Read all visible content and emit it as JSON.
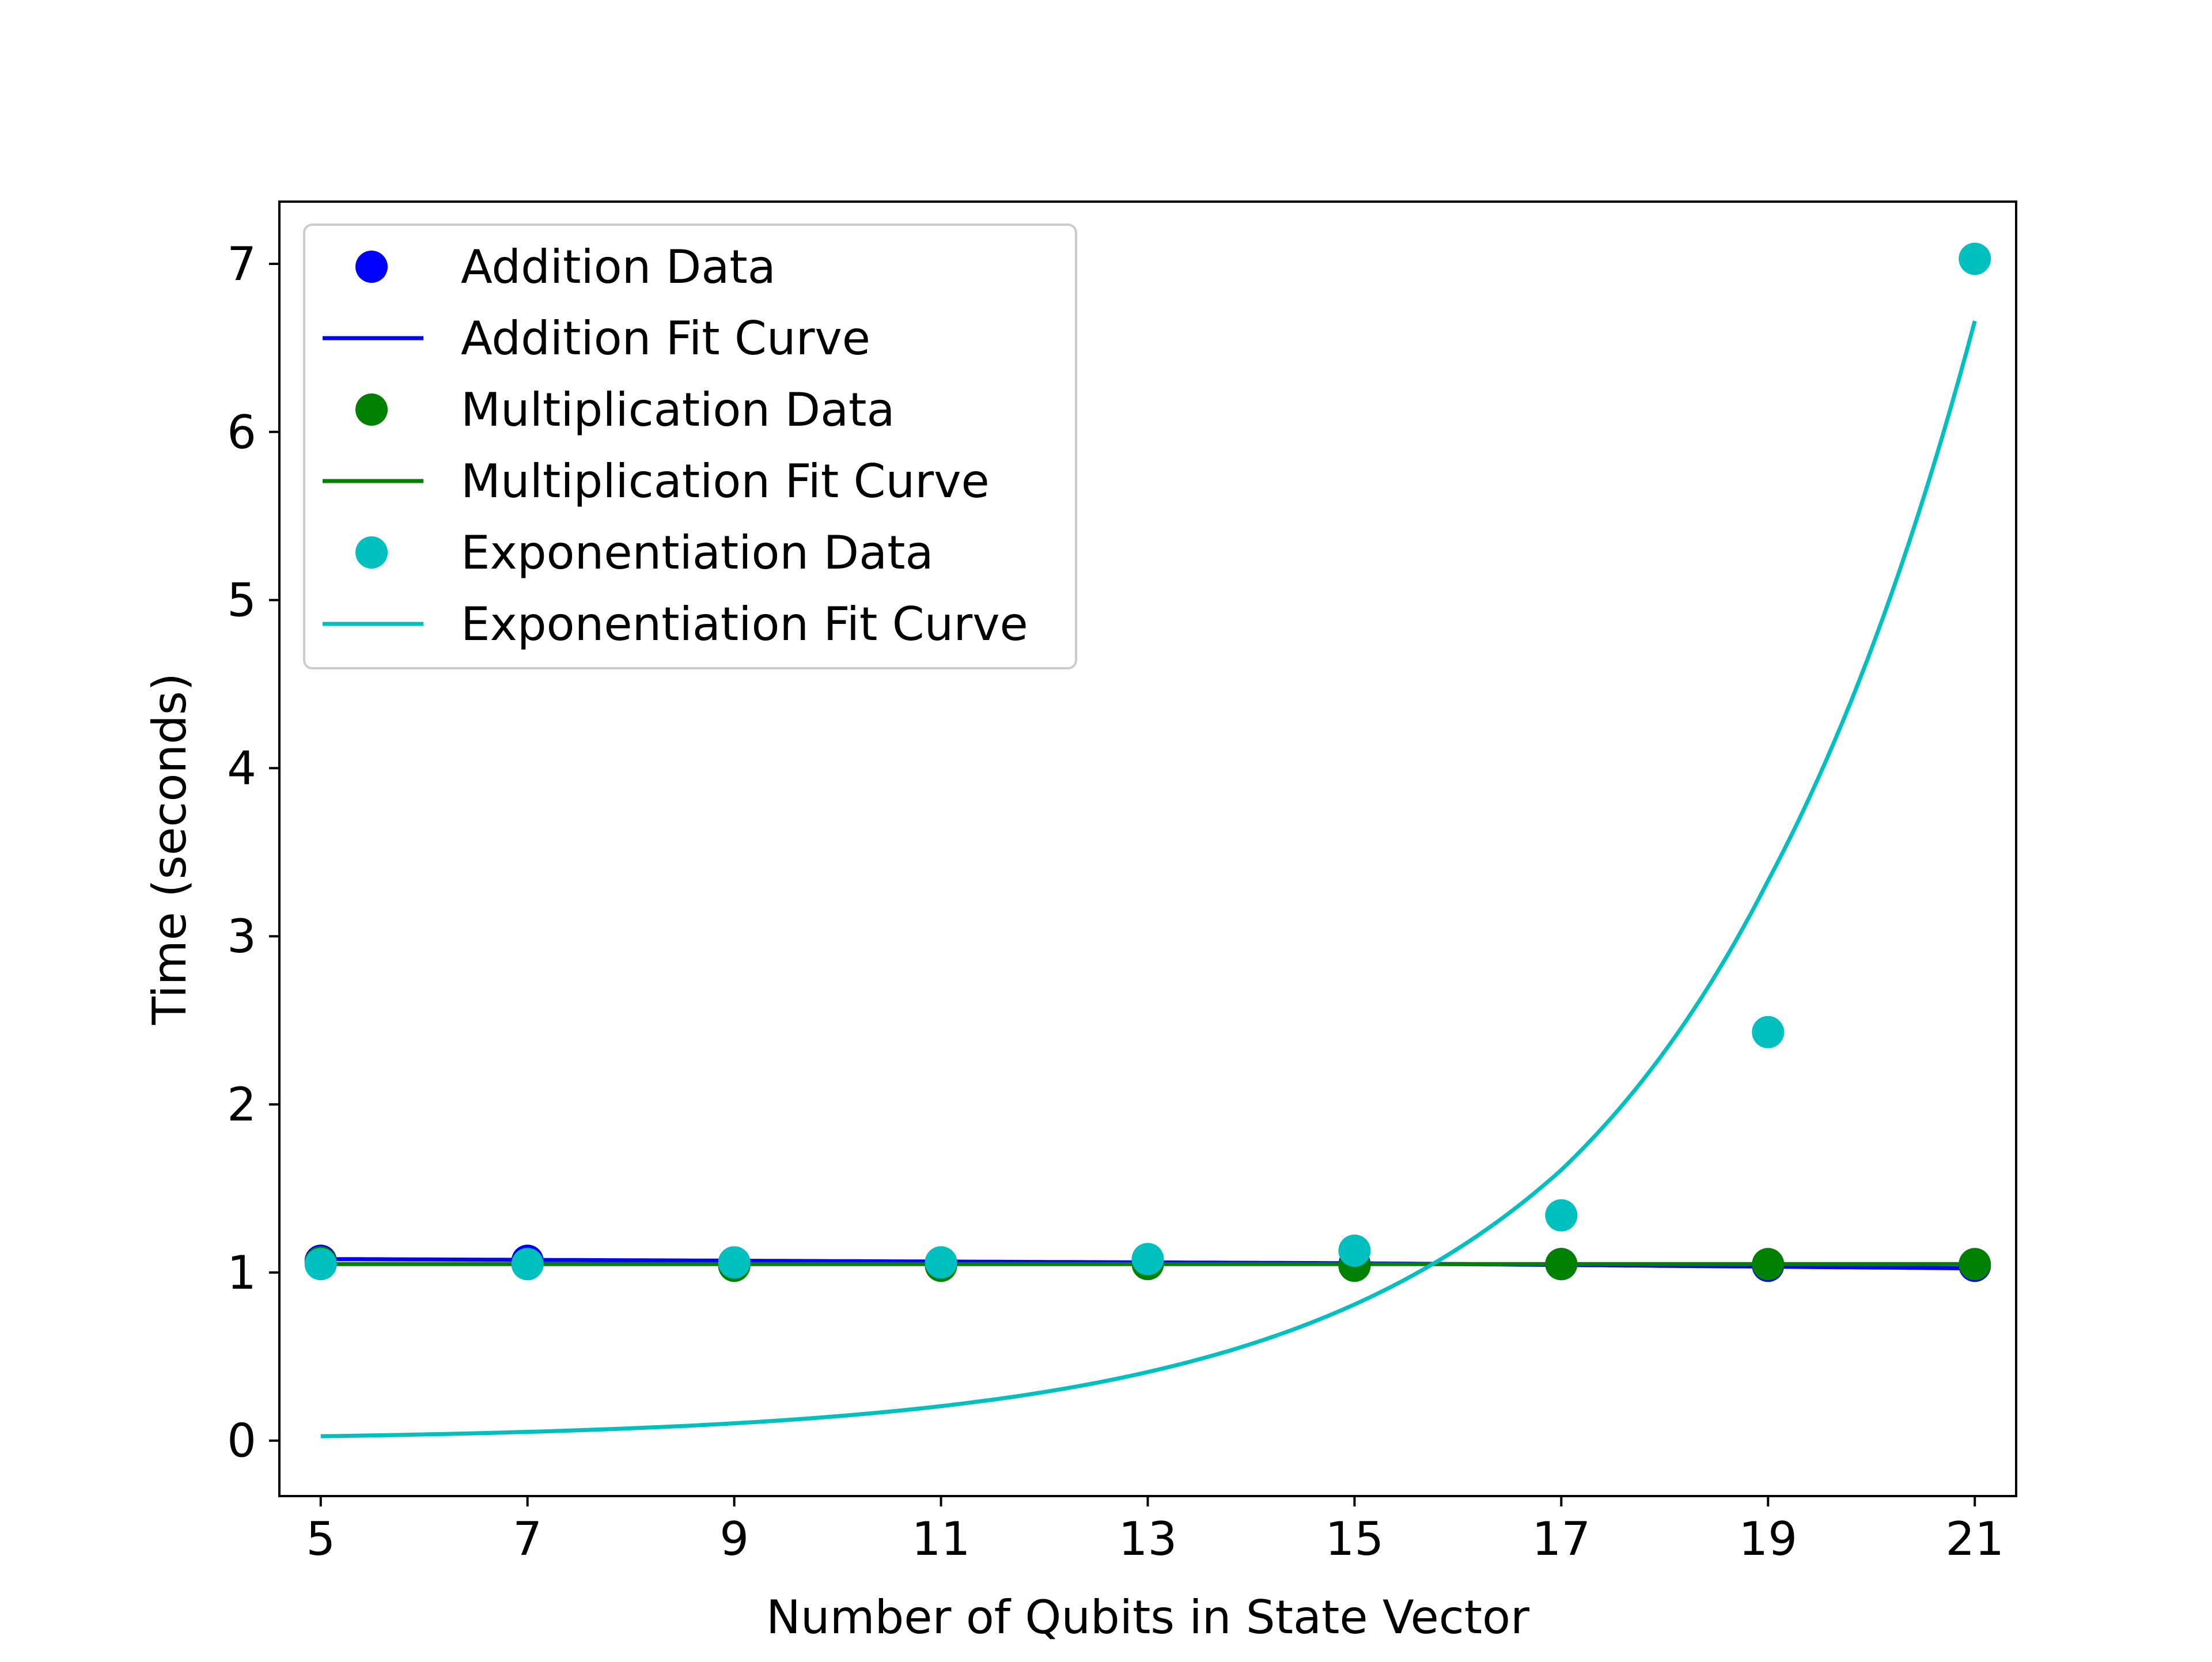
{
  "chart_data": {
    "type": "scatter",
    "title": "",
    "xlabel": "Number of Qubits in State Vector",
    "ylabel": "Time (seconds)",
    "xlim": [
      4.6,
      21.4
    ],
    "ylim": [
      -0.33,
      7.37
    ],
    "x_ticks": [
      "5",
      "7",
      "9",
      "11",
      "13",
      "15",
      "17",
      "19",
      "21"
    ],
    "y_ticks": [
      "0",
      "1",
      "2",
      "3",
      "4",
      "5",
      "6",
      "7"
    ],
    "grid": false,
    "legend_position": "upper-left",
    "x": [
      5,
      7,
      9,
      11,
      13,
      15,
      17,
      19,
      21
    ],
    "series": [
      {
        "name": "Addition Data",
        "kind": "points",
        "color": "#0000ff",
        "values": [
          1.07,
          1.07,
          1.06,
          1.06,
          1.06,
          1.05,
          1.05,
          1.04,
          1.04
        ]
      },
      {
        "name": "Addition Fit Curve",
        "kind": "line",
        "color": "#0000ff",
        "values": [
          1.08,
          1.075,
          1.07,
          1.065,
          1.06,
          1.055,
          1.045,
          1.035,
          1.025
        ]
      },
      {
        "name": "Multiplication Data",
        "kind": "points",
        "color": "#008000",
        "values": [
          1.06,
          1.05,
          1.04,
          1.04,
          1.05,
          1.04,
          1.05,
          1.05,
          1.05
        ]
      },
      {
        "name": "Multiplication Fit Curve",
        "kind": "line",
        "color": "#008000",
        "values": [
          1.05,
          1.05,
          1.05,
          1.05,
          1.05,
          1.05,
          1.05,
          1.05,
          1.05
        ]
      },
      {
        "name": "Exponentiation Data",
        "kind": "points",
        "color": "#00bfbf",
        "values": [
          1.05,
          1.05,
          1.06,
          1.06,
          1.08,
          1.13,
          1.34,
          2.43,
          7.03
        ]
      },
      {
        "name": "Exponentiation Fit Curve",
        "kind": "line",
        "color": "#00bfbf",
        "values": [
          0.026,
          0.052,
          0.103,
          0.205,
          0.408,
          0.81,
          1.61,
          3.33,
          6.66
        ]
      }
    ]
  }
}
